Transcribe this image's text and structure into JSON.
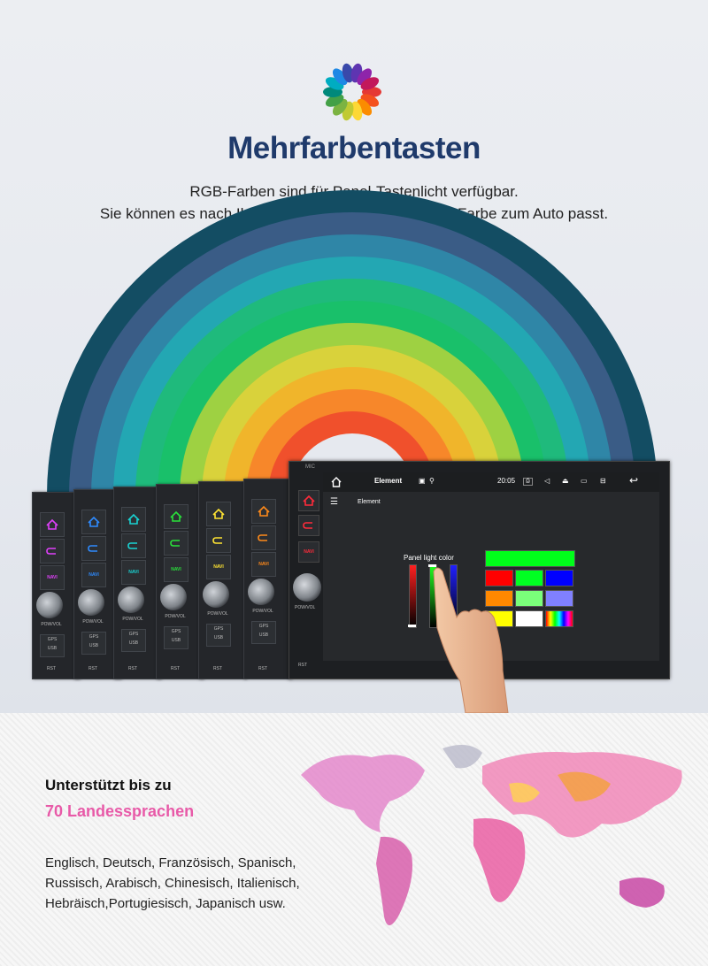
{
  "header": {
    "title": "Mehrfarbentasten",
    "subtitle_line1": "RGB-Farben sind für Panel-Tastenlicht verfügbar.",
    "subtitle_line2": "Sie können es nach Ihrem Wunsch ändern, damit die Farbe zum Auto passt."
  },
  "wheel_colors": [
    "#e53935",
    "#f4511e",
    "#fb8c00",
    "#fdd835",
    "#c0ca33",
    "#7cb342",
    "#43a047",
    "#00897b",
    "#00acc1",
    "#1e88e5",
    "#3949ab",
    "#5e35b1",
    "#8e24aa",
    "#c2185b"
  ],
  "rainbow_colors": [
    "#134d63",
    "#3a5c86",
    "#2f86a7",
    "#23a7b3",
    "#1fba7c",
    "#19c06a",
    "#9ed142",
    "#d9d23b",
    "#f0b52b",
    "#f7872a",
    "#f0502c",
    "#ffffff"
  ],
  "units": {
    "key_colors": [
      "#e040fb",
      "#2e8bff",
      "#19d3d3",
      "#29e03b",
      "#ffe433",
      "#ff8a1a",
      "#ff2b3a"
    ],
    "navi_label": "NAVI",
    "pwr_label": "POW/VOL",
    "gps_label": "GPS",
    "usb_label": "USB",
    "rst_label": "RST",
    "mic_label": "MIC"
  },
  "screen": {
    "app_title": "Element",
    "time": "20:05",
    "menu_title": "Element",
    "panel_label": "Panel light color",
    "swatches": [
      "#00ff1a",
      "#ff0000",
      "#00ff22",
      "#0000ff",
      "#ff8800",
      "#7aff7a",
      "#8080ff",
      "#ffff00",
      "#ffffff"
    ]
  },
  "languages": {
    "heading": "Unterstützt bis zu",
    "count_label": "70 Landessprachen",
    "line1": "Englisch, Deutsch, Französisch, Spanisch,",
    "line2": "Russisch, Arabisch, Chinesisch, Italienisch,",
    "line3": "Hebräisch,Portugiesisch, Japanisch usw."
  }
}
